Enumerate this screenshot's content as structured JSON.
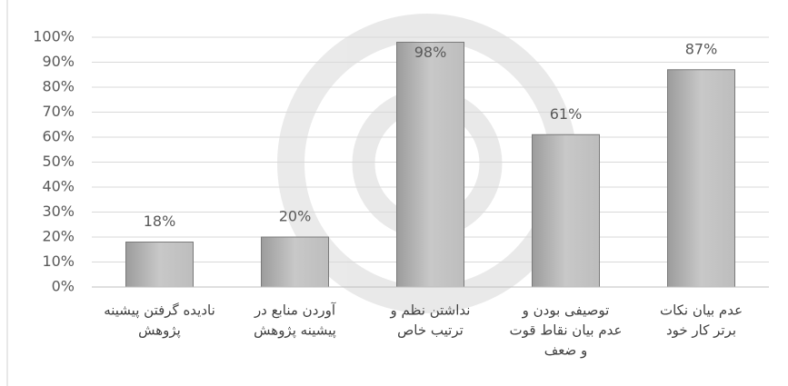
{
  "chart_data": {
    "type": "bar",
    "categories": [
      [
        "نادیده گرفتن پیشینه",
        "پژوهش"
      ],
      [
        "آوردن منابع در",
        "پیشینه پژوهش"
      ],
      [
        "نداشتن نظم و",
        "ترتیب خاص"
      ],
      [
        "توصیفی بودن و",
        "عدم بیان نقاط قوت",
        "و ضعف"
      ],
      [
        "عدم بیان نکات",
        "برتر کار خود"
      ]
    ],
    "values": [
      18,
      20,
      98,
      61,
      87
    ],
    "value_labels": [
      "18%",
      "20%",
      "98%",
      "61%",
      "87%"
    ],
    "color": "#b5b5b5",
    "ylim": [
      0,
      100
    ],
    "yticks": [
      {
        "value": 0,
        "label": "0%"
      },
      {
        "value": 10,
        "label": "10%"
      },
      {
        "value": 20,
        "label": "20%"
      },
      {
        "value": 30,
        "label": "30%"
      },
      {
        "value": 40,
        "label": "40%"
      },
      {
        "value": 50,
        "label": "50%"
      },
      {
        "value": 60,
        "label": "60%"
      },
      {
        "value": 70,
        "label": "70%"
      },
      {
        "value": 80,
        "label": "80%"
      },
      {
        "value": 90,
        "label": "90%"
      },
      {
        "value": 100,
        "label": "100%"
      }
    ],
    "grid": true
  }
}
